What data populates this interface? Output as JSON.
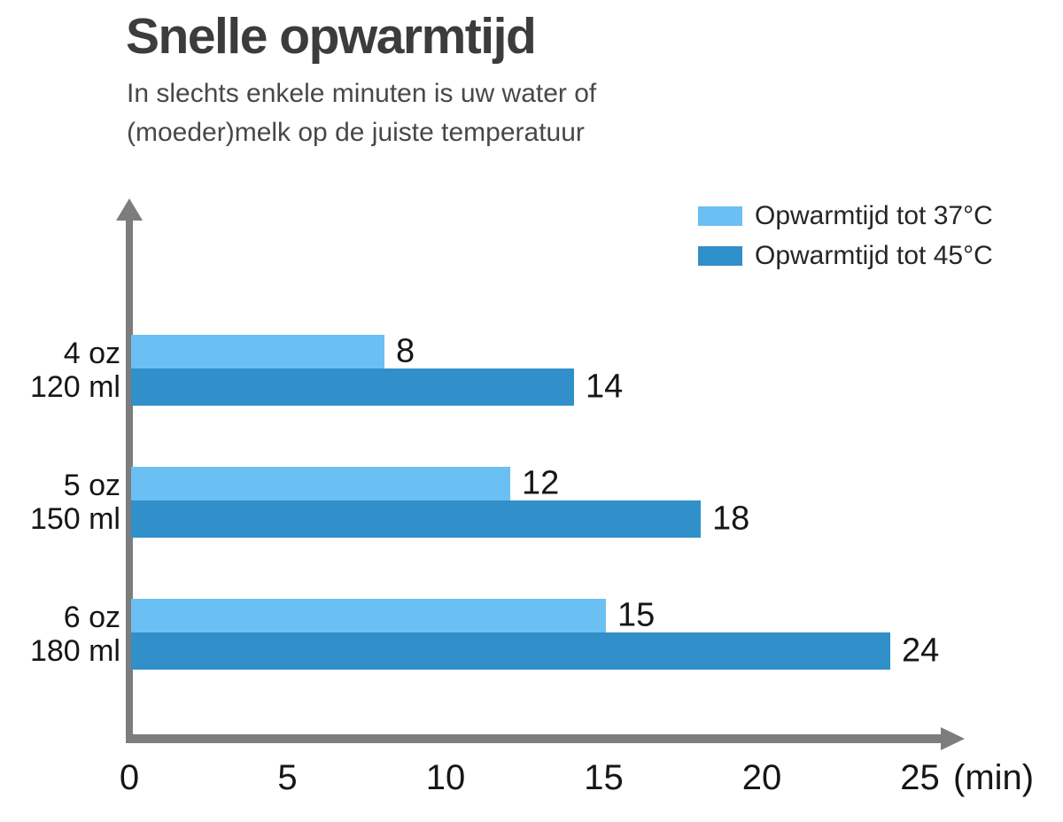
{
  "header": {
    "title": "Snelle opwarmtijd",
    "subtitle": "In slechts enkele minuten is uw water of (moeder)melk op de juiste temperatuur"
  },
  "colors": {
    "series_37c": "#6bc0f3",
    "series_45c": "#318fc9",
    "axis": "#7d7d7d",
    "title_text": "#3c3c3e",
    "subtitle_text": "#48484a",
    "label_text": "#161616"
  },
  "chart_data": {
    "type": "bar",
    "orientation": "horizontal",
    "title": "Snelle opwarmtijd",
    "categories": [
      {
        "oz": "4 oz",
        "ml": "120 ml"
      },
      {
        "oz": "5 oz",
        "ml": "150 ml"
      },
      {
        "oz": "6 oz",
        "ml": "180 ml"
      }
    ],
    "series": [
      {
        "name": "Opwarmtijd tot 37°C",
        "color": "#6bc0f3",
        "values": [
          8,
          12,
          15
        ]
      },
      {
        "name": "Opwarmtijd tot 45°C",
        "color": "#318fc9",
        "values": [
          14,
          18,
          24
        ]
      }
    ],
    "x_ticks": [
      0,
      5,
      10,
      15,
      20,
      25
    ],
    "x_unit": "(min)",
    "xlim": [
      0,
      26
    ],
    "grid": false,
    "legend_position": "top-right",
    "value_labels": "end-of-bar"
  }
}
